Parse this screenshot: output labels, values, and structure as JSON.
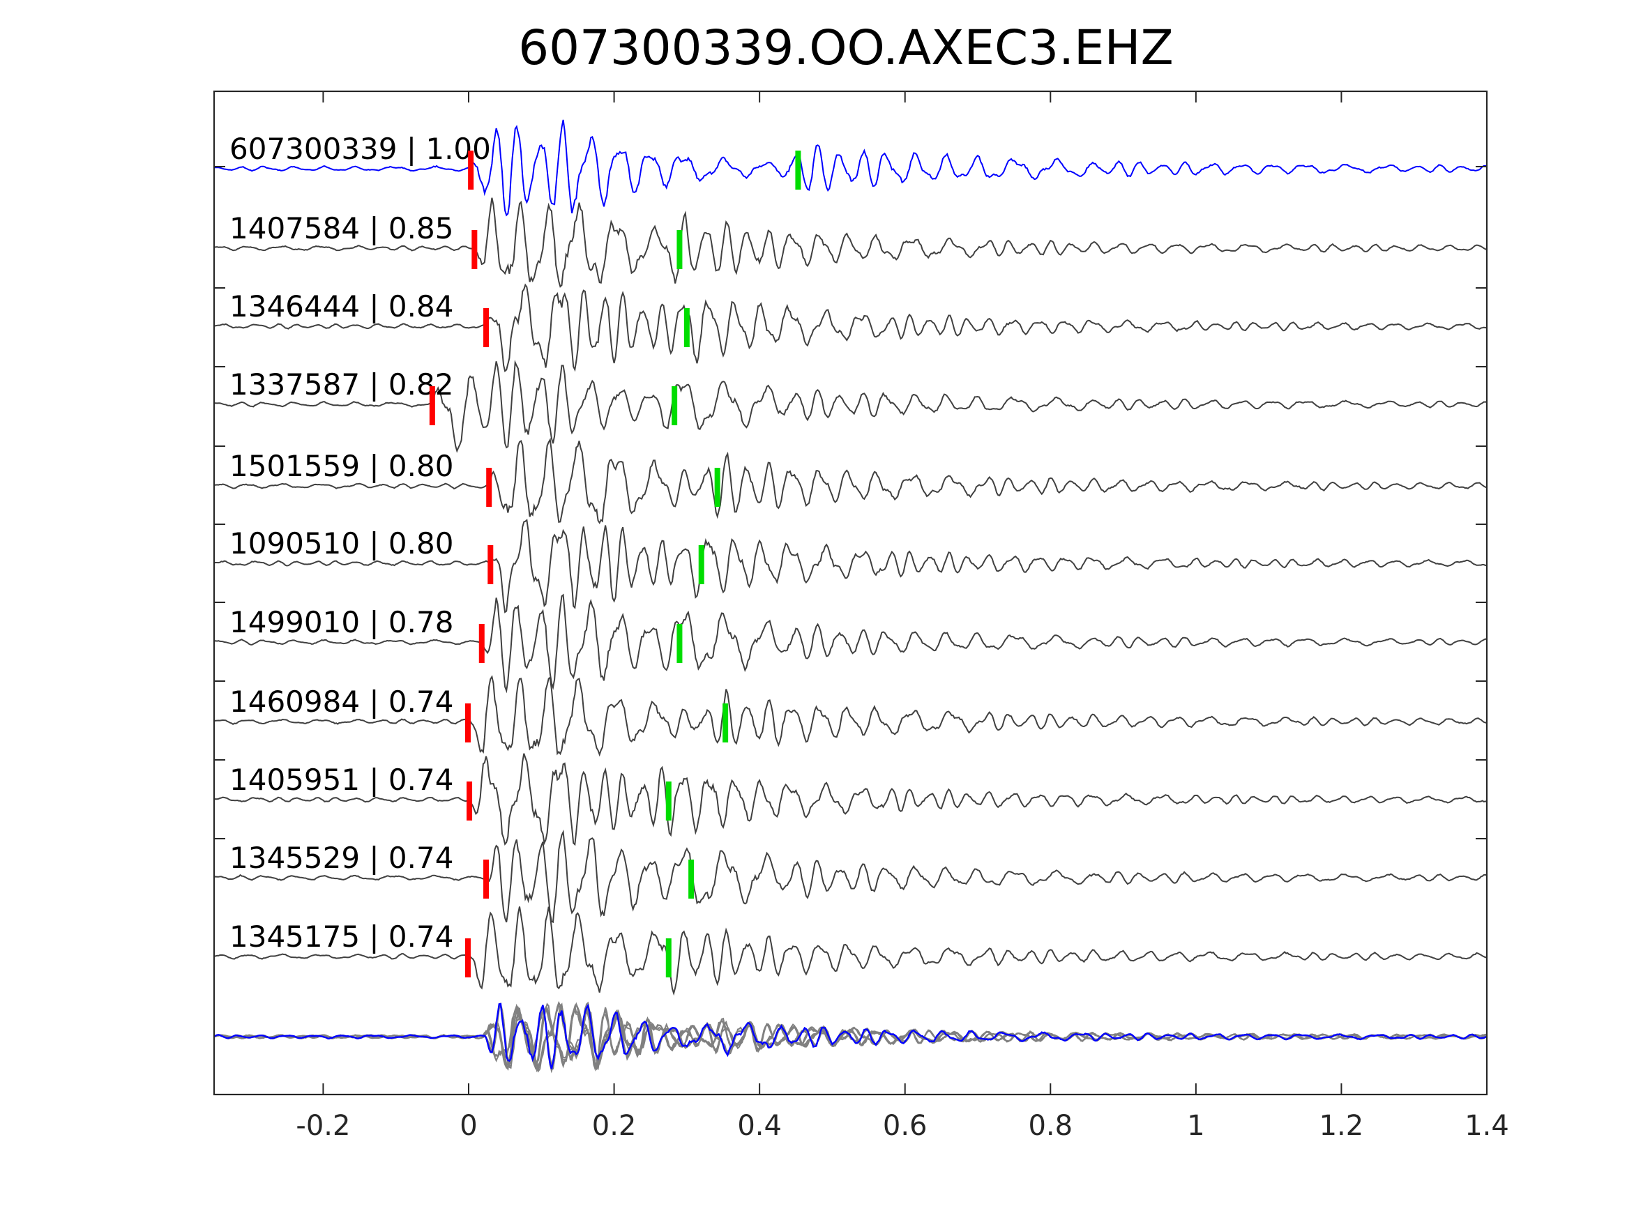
{
  "chart_data": {
    "type": "line",
    "title": "607300339.OO.AXEC3.EHZ",
    "xlabel": "",
    "ylabel": "",
    "xlim": [
      -0.35,
      1.4
    ],
    "x_ticks": [
      -0.2,
      0,
      0.2,
      0.4,
      0.6,
      0.8,
      1,
      1.2,
      1.4
    ],
    "x_tick_labels": [
      "-0.2",
      "0",
      "0.2",
      "0.4",
      "0.6",
      "0.8",
      "1",
      "1.2",
      "1.4"
    ],
    "grid": false,
    "legend": "none",
    "colors": {
      "master_trace": "#0000ff",
      "neighbor_trace": "#404040",
      "stack_trace": "#808080",
      "p_pick": "#ff0000",
      "s_pick": "#00dd00"
    },
    "series": [
      {
        "label": "607300339 | 1.00",
        "p_pick": 0.003,
        "s_pick": 0.453,
        "color": "#0000ff"
      },
      {
        "label": "1407584 | 0.85",
        "p_pick": 0.008,
        "s_pick": 0.29,
        "color": "#404040"
      },
      {
        "label": "1346444 | 0.84",
        "p_pick": 0.024,
        "s_pick": 0.3,
        "color": "#404040"
      },
      {
        "label": "1337587 | 0.82",
        "p_pick": -0.05,
        "s_pick": 0.283,
        "color": "#404040"
      },
      {
        "label": "1501559 | 0.80",
        "p_pick": 0.028,
        "s_pick": 0.342,
        "color": "#404040"
      },
      {
        "label": "1090510 | 0.80",
        "p_pick": 0.03,
        "s_pick": 0.32,
        "color": "#404040"
      },
      {
        "label": "1499010 | 0.78",
        "p_pick": 0.018,
        "s_pick": 0.29,
        "color": "#404040"
      },
      {
        "label": "1460984 | 0.74",
        "p_pick": -0.001,
        "s_pick": 0.353,
        "color": "#404040"
      },
      {
        "label": "1405951 | 0.74",
        "p_pick": 0.001,
        "s_pick": 0.275,
        "color": "#404040"
      },
      {
        "label": "1345529 | 0.74",
        "p_pick": 0.024,
        "s_pick": 0.306,
        "color": "#404040"
      },
      {
        "label": "1345175 | 0.74",
        "p_pick": -0.001,
        "s_pick": 0.275,
        "color": "#404040"
      }
    ],
    "stack": {
      "count": 11,
      "color": "#808080",
      "highlight_color": "#0000ff"
    }
  }
}
